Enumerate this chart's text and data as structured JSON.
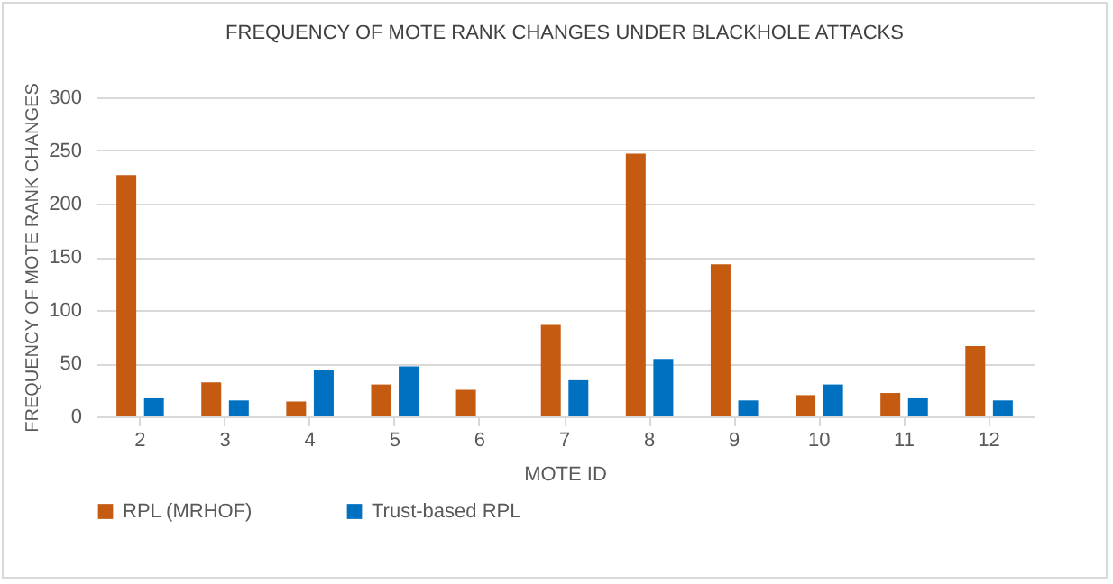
{
  "chart_data": {
    "type": "bar",
    "title": "FREQUENCY OF MOTE RANK CHANGES UNDER BLACKHOLE ATTACKS",
    "xlabel": "MOTE ID",
    "ylabel": "FREQUENCY OF MOTE RANK CHANGES",
    "categories": [
      "2",
      "3",
      "4",
      "5",
      "6",
      "7",
      "8",
      "9",
      "10",
      "11",
      "12"
    ],
    "series": [
      {
        "name": "RPL (MRHOF)",
        "color": "#c55a11",
        "values": [
          227,
          32,
          14,
          30,
          25,
          86,
          247,
          143,
          20,
          22,
          66
        ]
      },
      {
        "name": "Trust-based RPL",
        "color": "#0070c0",
        "values": [
          17,
          15,
          44,
          47,
          0,
          34,
          54,
          15,
          30,
          17,
          15
        ]
      }
    ],
    "ylim": [
      0,
      300
    ],
    "yticks": [
      0,
      50,
      100,
      150,
      200,
      250,
      300
    ],
    "grid": "y",
    "legend": "bottom"
  }
}
